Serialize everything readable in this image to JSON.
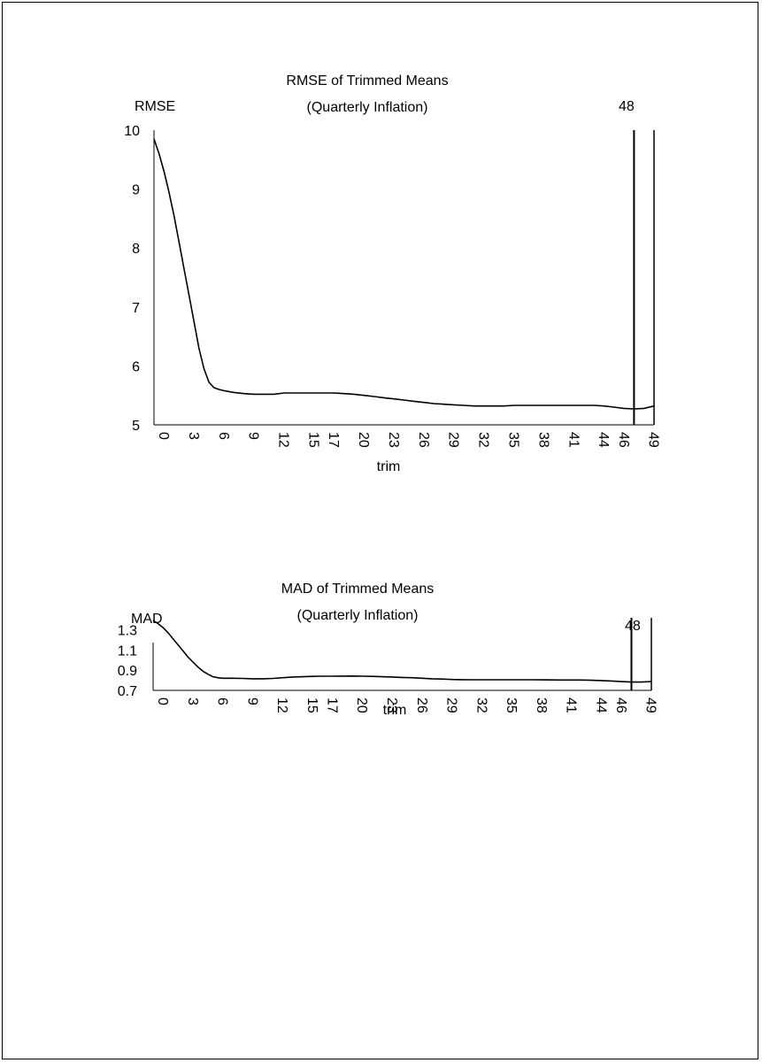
{
  "colors": {
    "line": "#000000",
    "background": "#ffffff"
  },
  "chart_data": [
    {
      "type": "line",
      "title": "RMSE of Trimmed Means",
      "subtitle": "(Quarterly Inflation)",
      "xlabel": "trim",
      "ylabel": "RMSE",
      "ylim": [
        5,
        10
      ],
      "yticks": [
        "5",
        "6",
        "7",
        "8",
        "9",
        "10"
      ],
      "xlim": [
        0,
        50
      ],
      "xticks": [
        "0",
        "3",
        "6",
        "9",
        "12",
        "15",
        "17",
        "20",
        "23",
        "26",
        "29",
        "32",
        "35",
        "38",
        "41",
        "44",
        "46",
        "49"
      ],
      "grid": false,
      "legend": "none",
      "reference_line": {
        "x": 48,
        "label": "48"
      },
      "series": [
        {
          "x": [
            0,
            0.5,
            1,
            1.5,
            2,
            2.5,
            3,
            3.5,
            4,
            4.5,
            5,
            5.5,
            6,
            6.5,
            7,
            8,
            9,
            10,
            11,
            12,
            13,
            14,
            15,
            16,
            17,
            18,
            19,
            20,
            21,
            22,
            23,
            24,
            25,
            26,
            27,
            28,
            29,
            30,
            31,
            32,
            33,
            34,
            35,
            36,
            37,
            38,
            39,
            40,
            41,
            42,
            43,
            44,
            45,
            46,
            47,
            48,
            49,
            50
          ],
          "y": [
            9.85,
            9.6,
            9.3,
            8.95,
            8.55,
            8.1,
            7.65,
            7.2,
            6.75,
            6.3,
            5.95,
            5.72,
            5.63,
            5.6,
            5.58,
            5.55,
            5.53,
            5.52,
            5.52,
            5.52,
            5.54,
            5.54,
            5.54,
            5.54,
            5.54,
            5.54,
            5.53,
            5.52,
            5.5,
            5.48,
            5.46,
            5.44,
            5.42,
            5.4,
            5.38,
            5.36,
            5.35,
            5.34,
            5.33,
            5.32,
            5.32,
            5.32,
            5.32,
            5.33,
            5.33,
            5.33,
            5.33,
            5.33,
            5.33,
            5.33,
            5.33,
            5.33,
            5.32,
            5.3,
            5.28,
            5.27,
            5.28,
            5.32
          ]
        }
      ]
    },
    {
      "type": "line",
      "title": "MAD of Trimmed Means",
      "subtitle": "(Quarterly Inflation)",
      "xlabel": "trim",
      "ylabel": "MAD",
      "ylim": [
        0.7,
        1.4
      ],
      "yticks": [
        "0.7",
        "0.9",
        "1.1",
        "1.3"
      ],
      "xlim": [
        0,
        50
      ],
      "xticks": [
        "0",
        "3",
        "6",
        "9",
        "12",
        "15",
        "17",
        "20",
        "23",
        "26",
        "29",
        "32",
        "35",
        "38",
        "41",
        "44",
        "46",
        "49"
      ],
      "grid": false,
      "legend": "none",
      "reference_line": {
        "x": 48,
        "label": "48"
      },
      "series": [
        {
          "x": [
            0,
            0.5,
            1,
            1.5,
            2,
            2.5,
            3,
            3.5,
            4,
            4.5,
            5,
            5.5,
            6,
            6.5,
            7,
            8,
            9,
            10,
            11,
            12,
            13,
            14,
            15,
            16,
            17,
            18,
            19,
            20,
            21,
            22,
            23,
            24,
            25,
            26,
            27,
            28,
            29,
            30,
            31,
            32,
            33,
            34,
            35,
            36,
            37,
            38,
            39,
            40,
            41,
            42,
            43,
            44,
            45,
            46,
            47,
            48,
            49,
            50
          ],
          "y": [
            1.39,
            1.36,
            1.32,
            1.27,
            1.21,
            1.15,
            1.09,
            1.03,
            0.98,
            0.93,
            0.89,
            0.86,
            0.835,
            0.825,
            0.82,
            0.82,
            0.818,
            0.815,
            0.815,
            0.818,
            0.825,
            0.832,
            0.835,
            0.838,
            0.84,
            0.84,
            0.841,
            0.842,
            0.84,
            0.838,
            0.835,
            0.832,
            0.828,
            0.825,
            0.82,
            0.815,
            0.812,
            0.808,
            0.806,
            0.805,
            0.805,
            0.805,
            0.805,
            0.805,
            0.805,
            0.805,
            0.804,
            0.803,
            0.802,
            0.802,
            0.802,
            0.8,
            0.797,
            0.793,
            0.787,
            0.782,
            0.782,
            0.787
          ]
        }
      ]
    }
  ]
}
